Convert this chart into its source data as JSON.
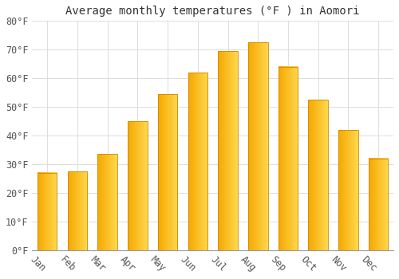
{
  "title": "Average monthly temperatures (°F ) in Aomori",
  "months": [
    "Jan",
    "Feb",
    "Mar",
    "Apr",
    "May",
    "Jun",
    "Jul",
    "Aug",
    "Sep",
    "Oct",
    "Nov",
    "Dec"
  ],
  "values": [
    27,
    27.5,
    33.5,
    45,
    54.5,
    62,
    69.5,
    72.5,
    64,
    52.5,
    42,
    32
  ],
  "bar_color_left": "#F5A800",
  "bar_color_right": "#FFD84D",
  "bar_edge_color": "#CC8800",
  "background_color": "#FFFFFF",
  "grid_color": "#DDDDDD",
  "text_color": "#555555",
  "title_color": "#333333",
  "ylim": [
    0,
    80
  ],
  "yticks": [
    0,
    10,
    20,
    30,
    40,
    50,
    60,
    70,
    80
  ],
  "xlabel_rotation": -45,
  "title_fontsize": 10,
  "tick_fontsize": 8.5,
  "font_family": "monospace",
  "bar_width": 0.65
}
